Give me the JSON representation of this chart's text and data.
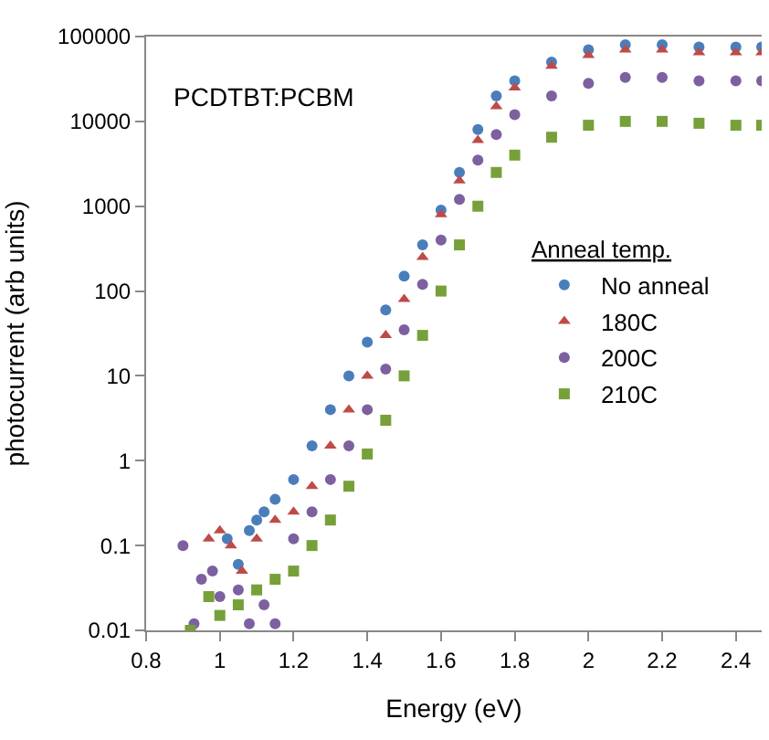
{
  "chart_data": {
    "type": "scatter",
    "xlabel": "Energy (eV)",
    "ylabel": "photocurrent (arb units)",
    "legend_title": "Anneal temp.",
    "legend": "right",
    "log": "y",
    "xlim": [
      0.8,
      2.47
    ],
    "xticks": [
      0.8,
      1,
      1.2,
      1.4,
      1.6,
      1.8,
      2,
      2.2,
      2.4
    ],
    "ylim": [
      0.01,
      100000
    ],
    "yticks": [
      0.01,
      0.1,
      1,
      10,
      100,
      1000,
      10000,
      100000
    ],
    "annotations": [
      "PCDTBT:PCBM"
    ],
    "series": [
      {
        "name": "No anneal",
        "color": "#4a7ebb",
        "marker": "circle",
        "x": [
          1.02,
          1.05,
          1.08,
          1.1,
          1.12,
          1.15,
          1.2,
          1.25,
          1.3,
          1.35,
          1.4,
          1.45,
          1.5,
          1.55,
          1.6,
          1.65,
          1.7,
          1.75,
          1.8,
          1.9,
          2.0,
          2.1,
          2.2,
          2.3,
          2.4,
          2.47
        ],
        "values": [
          0.12,
          0.06,
          0.15,
          0.2,
          0.25,
          0.35,
          0.6,
          1.5,
          4,
          10,
          25,
          60,
          150,
          350,
          900,
          2500,
          8000,
          20000,
          30000,
          50000,
          70000,
          80000,
          80000,
          75000,
          75000,
          75000
        ]
      },
      {
        "name": "180C",
        "color": "#be4b48",
        "marker": "triangle",
        "x": [
          0.97,
          1.0,
          1.03,
          1.06,
          1.1,
          1.15,
          1.2,
          1.25,
          1.3,
          1.35,
          1.4,
          1.45,
          1.5,
          1.55,
          1.6,
          1.65,
          1.7,
          1.75,
          1.8,
          1.9,
          2.0,
          2.1,
          2.2,
          2.3,
          2.4,
          2.47
        ],
        "values": [
          0.12,
          0.15,
          0.1,
          0.05,
          0.12,
          0.2,
          0.25,
          0.5,
          1.5,
          4,
          10,
          30,
          80,
          250,
          800,
          2000,
          6000,
          15000,
          25000,
          45000,
          60000,
          70000,
          70000,
          65000,
          65000,
          65000
        ]
      },
      {
        "name": "200C",
        "color": "#7d60a0",
        "marker": "circle",
        "x": [
          0.9,
          0.93,
          0.95,
          0.98,
          1.0,
          1.05,
          1.08,
          1.12,
          1.15,
          1.2,
          1.25,
          1.3,
          1.35,
          1.4,
          1.45,
          1.5,
          1.55,
          1.6,
          1.65,
          1.7,
          1.75,
          1.8,
          1.9,
          2.0,
          2.1,
          2.2,
          2.3,
          2.4,
          2.47
        ],
        "values": [
          0.1,
          0.012,
          0.04,
          0.05,
          0.025,
          0.03,
          0.012,
          0.02,
          0.012,
          0.12,
          0.25,
          0.6,
          1.5,
          4,
          12,
          35,
          120,
          400,
          1200,
          3500,
          7000,
          12000,
          20000,
          28000,
          33000,
          33000,
          30000,
          30000,
          30000
        ]
      },
      {
        "name": "210C",
        "color": "#77a03a",
        "marker": "square",
        "x": [
          0.92,
          0.97,
          1.0,
          1.05,
          1.1,
          1.15,
          1.2,
          1.25,
          1.3,
          1.35,
          1.4,
          1.45,
          1.5,
          1.55,
          1.6,
          1.65,
          1.7,
          1.75,
          1.8,
          1.9,
          2.0,
          2.1,
          2.2,
          2.3,
          2.4,
          2.47
        ],
        "values": [
          0.01,
          0.025,
          0.015,
          0.02,
          0.03,
          0.04,
          0.05,
          0.1,
          0.2,
          0.5,
          1.2,
          3,
          10,
          30,
          100,
          350,
          1000,
          2500,
          4000,
          6500,
          9000,
          10000,
          10000,
          9500,
          9000,
          9000
        ]
      }
    ]
  }
}
